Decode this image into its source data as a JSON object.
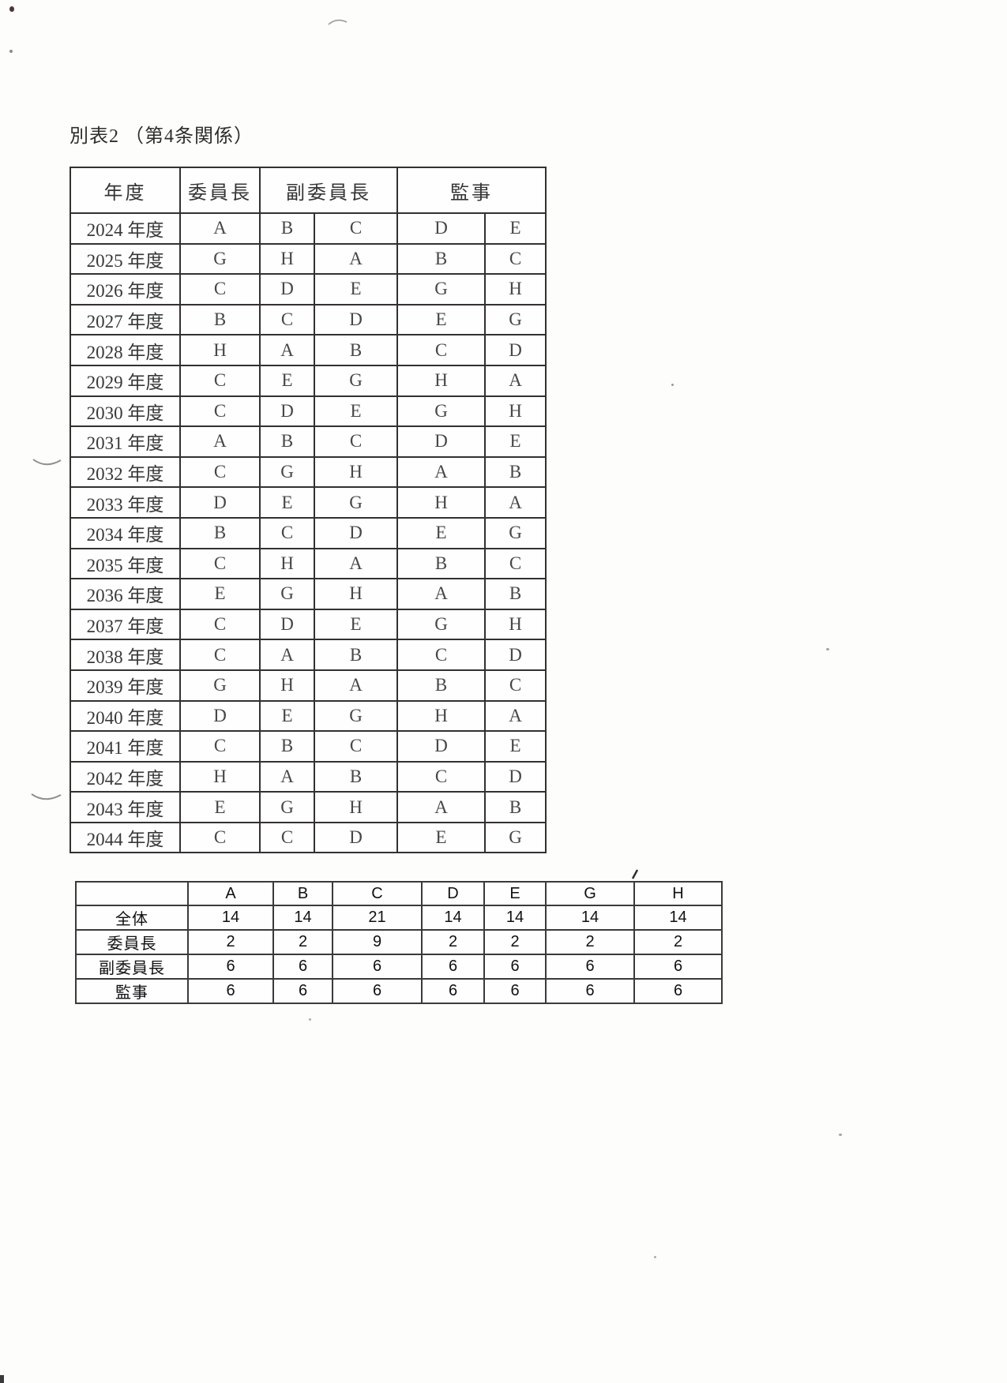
{
  "page": {
    "title": "別表2 （第4条関係）"
  },
  "main_table": {
    "headers": {
      "year": "年度",
      "chair": "委員長",
      "vice_chair": "副委員長",
      "auditor": "監事"
    },
    "rows": [
      {
        "year": "2024 年度",
        "cells": [
          "A",
          "B",
          "C",
          "D",
          "E"
        ]
      },
      {
        "year": "2025 年度",
        "cells": [
          "G",
          "H",
          "A",
          "B",
          "C"
        ]
      },
      {
        "year": "2026 年度",
        "cells": [
          "C",
          "D",
          "E",
          "G",
          "H"
        ]
      },
      {
        "year": "2027 年度",
        "cells": [
          "B",
          "C",
          "D",
          "E",
          "G"
        ]
      },
      {
        "year": "2028 年度",
        "cells": [
          "H",
          "A",
          "B",
          "C",
          "D"
        ]
      },
      {
        "year": "2029 年度",
        "cells": [
          "C",
          "E",
          "G",
          "H",
          "A"
        ]
      },
      {
        "year": "2030 年度",
        "cells": [
          "C",
          "D",
          "E",
          "G",
          "H"
        ]
      },
      {
        "year": "2031 年度",
        "cells": [
          "A",
          "B",
          "C",
          "D",
          "E"
        ]
      },
      {
        "year": "2032 年度",
        "cells": [
          "C",
          "G",
          "H",
          "A",
          "B"
        ]
      },
      {
        "year": "2033 年度",
        "cells": [
          "D",
          "E",
          "G",
          "H",
          "A"
        ]
      },
      {
        "year": "2034 年度",
        "cells": [
          "B",
          "C",
          "D",
          "E",
          "G"
        ]
      },
      {
        "year": "2035 年度",
        "cells": [
          "C",
          "H",
          "A",
          "B",
          "C"
        ]
      },
      {
        "year": "2036 年度",
        "cells": [
          "E",
          "G",
          "H",
          "A",
          "B"
        ]
      },
      {
        "year": "2037 年度",
        "cells": [
          "C",
          "D",
          "E",
          "G",
          "H"
        ]
      },
      {
        "year": "2038 年度",
        "cells": [
          "C",
          "A",
          "B",
          "C",
          "D"
        ]
      },
      {
        "year": "2039 年度",
        "cells": [
          "G",
          "H",
          "A",
          "B",
          "C"
        ]
      },
      {
        "year": "2040 年度",
        "cells": [
          "D",
          "E",
          "G",
          "H",
          "A"
        ]
      },
      {
        "year": "2041 年度",
        "cells": [
          "C",
          "B",
          "C",
          "D",
          "E"
        ]
      },
      {
        "year": "2042 年度",
        "cells": [
          "H",
          "A",
          "B",
          "C",
          "D"
        ]
      },
      {
        "year": "2043 年度",
        "cells": [
          "E",
          "G",
          "H",
          "A",
          "B"
        ]
      },
      {
        "year": "2044 年度",
        "cells": [
          "C",
          "C",
          "D",
          "E",
          "G"
        ]
      }
    ]
  },
  "summary_table": {
    "corner": "",
    "col_headers": [
      "A",
      "B",
      "C",
      "D",
      "E",
      "G",
      "H"
    ],
    "rows": [
      {
        "label": "全体",
        "values": [
          "14",
          "14",
          "21",
          "14",
          "14",
          "14",
          "14"
        ]
      },
      {
        "label": "委員長",
        "values": [
          "2",
          "2",
          "9",
          "2",
          "2",
          "2",
          "2"
        ]
      },
      {
        "label": "副委員長",
        "values": [
          "6",
          "6",
          "6",
          "6",
          "6",
          "6",
          "6"
        ]
      },
      {
        "label": "監事",
        "values": [
          "6",
          "6",
          "6",
          "6",
          "6",
          "6",
          "6"
        ]
      }
    ]
  }
}
